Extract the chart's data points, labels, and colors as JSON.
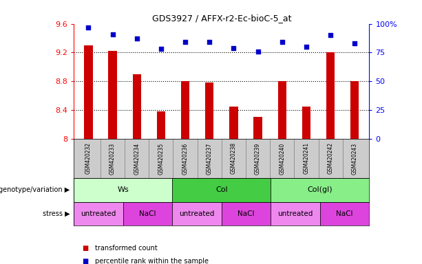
{
  "title": "GDS3927 / AFFX-r2-Ec-bioC-5_at",
  "samples": [
    "GSM420232",
    "GSM420233",
    "GSM420234",
    "GSM420235",
    "GSM420236",
    "GSM420237",
    "GSM420238",
    "GSM420239",
    "GSM420240",
    "GSM420241",
    "GSM420242",
    "GSM420243"
  ],
  "transformed_count": [
    9.3,
    9.22,
    8.9,
    8.38,
    8.8,
    8.78,
    8.45,
    8.3,
    8.8,
    8.45,
    9.2,
    8.8
  ],
  "percentile_rank": [
    97,
    91,
    87,
    78,
    84,
    84,
    79,
    76,
    84,
    80,
    90,
    83
  ],
  "ylim_left": [
    8.0,
    9.6
  ],
  "ylim_right": [
    0,
    100
  ],
  "yticks_left": [
    8.0,
    8.4,
    8.8,
    9.2,
    9.6
  ],
  "ytick_labels_left": [
    "8",
    "8.4",
    "8.8",
    "9.2",
    "9.6"
  ],
  "yticks_right": [
    0,
    25,
    50,
    75,
    100
  ],
  "ytick_labels_right": [
    "0",
    "25",
    "50",
    "75",
    "100%"
  ],
  "bar_color": "#cc0000",
  "dot_color": "#0000cc",
  "bar_bottom": 8.0,
  "groups": [
    {
      "label": "Ws",
      "start": 0,
      "end": 4,
      "color": "#ccffcc"
    },
    {
      "label": "Col",
      "start": 4,
      "end": 8,
      "color": "#44cc44"
    },
    {
      "label": "Col(gl)",
      "start": 8,
      "end": 12,
      "color": "#88ee88"
    }
  ],
  "stress": [
    {
      "label": "untreated",
      "start": 0,
      "end": 2,
      "color": "#ee88ee"
    },
    {
      "label": "NaCl",
      "start": 2,
      "end": 4,
      "color": "#dd44dd"
    },
    {
      "label": "untreated",
      "start": 4,
      "end": 6,
      "color": "#ee88ee"
    },
    {
      "label": "NaCl",
      "start": 6,
      "end": 8,
      "color": "#dd44dd"
    },
    {
      "label": "untreated",
      "start": 8,
      "end": 10,
      "color": "#ee88ee"
    },
    {
      "label": "NaCl",
      "start": 10,
      "end": 12,
      "color": "#dd44dd"
    }
  ],
  "legend_items": [
    {
      "label": "transformed count",
      "color": "#cc0000"
    },
    {
      "label": "percentile rank within the sample",
      "color": "#0000cc"
    }
  ],
  "genotype_label": "genotype/variation",
  "stress_label": "stress",
  "gridlines_dotted": [
    8.4,
    8.8,
    9.2
  ],
  "xtick_bg_color": "#cccccc",
  "background_color": "#ffffff"
}
